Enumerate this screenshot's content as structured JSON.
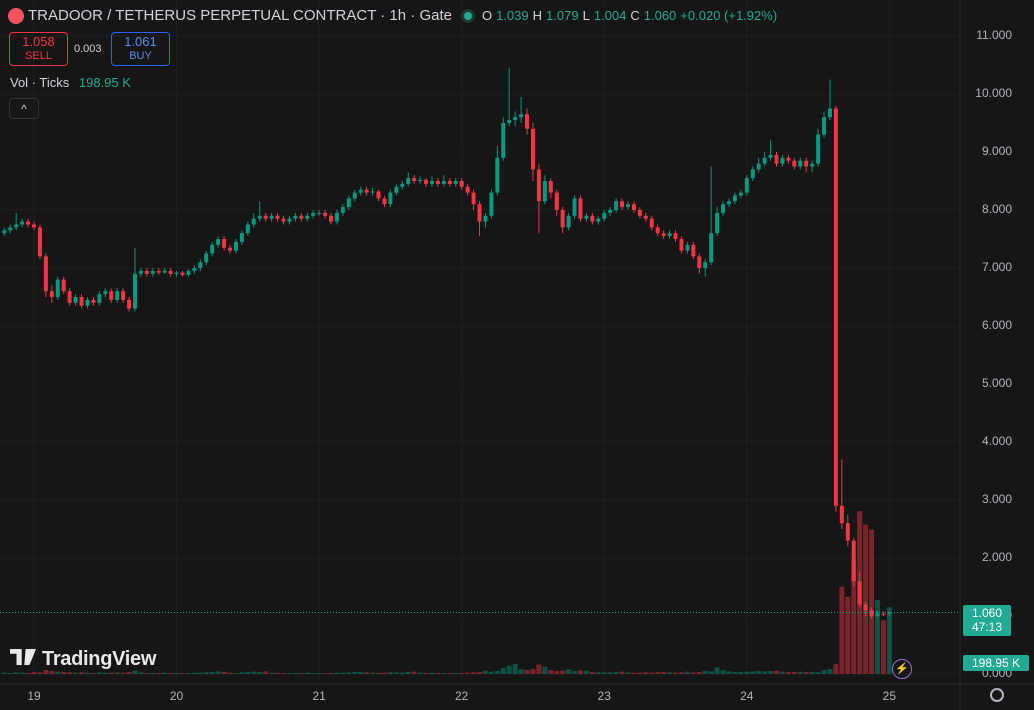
{
  "header": {
    "title": "TRADOOR / TETHERUS PERPETUAL CONTRACT · 1h · Gate",
    "o_label": "O",
    "o": "1.039",
    "h_label": "H",
    "h": "1.079",
    "l_label": "L",
    "l": "1.004",
    "c_label": "C",
    "c": "1.060",
    "change": "+0.020 (+1.92%)"
  },
  "trade": {
    "sell_price": "1.058",
    "sell": "SELL",
    "spread": "0.003",
    "buy_price": "1.061",
    "buy": "BUY"
  },
  "volume_legend": {
    "label": "Vol · Ticks",
    "value": "198.95 K"
  },
  "price_tag": {
    "price": "1.060",
    "countdown": "47:13"
  },
  "volume_tag": "198.95 K",
  "logo": "TradingView",
  "chart_data": {
    "type": "candlestick",
    "x_labels": [
      "19",
      "20",
      "21",
      "22",
      "23",
      "24",
      "25"
    ],
    "up_color": "#089981",
    "down_color": "#f23645",
    "grid": true,
    "ylim": [
      0,
      11
    ],
    "yticks": [
      {
        "value": 0,
        "label": "0.000"
      },
      {
        "value": 1,
        "label": "1.000"
      },
      {
        "value": 2,
        "label": "2.000"
      },
      {
        "value": 3,
        "label": "3.000"
      },
      {
        "value": 4,
        "label": "4.000"
      },
      {
        "value": 5,
        "label": "5.000"
      },
      {
        "value": 6,
        "label": "6.000"
      },
      {
        "value": 7,
        "label": "7.000"
      },
      {
        "value": 8,
        "label": "8.000"
      },
      {
        "value": 9,
        "label": "9.000"
      },
      {
        "value": 10,
        "label": "10.000"
      },
      {
        "value": 11,
        "label": "11.000"
      }
    ],
    "vlim": [
      0,
      1900
    ],
    "candles": [
      [
        7.6,
        7.7,
        7.55,
        7.65
      ],
      [
        7.65,
        7.75,
        7.6,
        7.7
      ],
      [
        7.7,
        7.95,
        7.65,
        7.75
      ],
      [
        7.75,
        7.85,
        7.7,
        7.8
      ],
      [
        7.8,
        7.85,
        7.7,
        7.75
      ],
      [
        7.75,
        7.8,
        7.65,
        7.7
      ],
      [
        7.7,
        7.75,
        7.15,
        7.2
      ],
      [
        7.2,
        7.25,
        6.5,
        6.6
      ],
      [
        6.6,
        6.7,
        6.4,
        6.5
      ],
      [
        6.5,
        6.85,
        6.45,
        6.8
      ],
      [
        6.8,
        6.85,
        6.55,
        6.6
      ],
      [
        6.6,
        6.65,
        6.35,
        6.4
      ],
      [
        6.4,
        6.55,
        6.35,
        6.5
      ],
      [
        6.5,
        6.55,
        6.3,
        6.35
      ],
      [
        6.35,
        6.5,
        6.3,
        6.45
      ],
      [
        6.45,
        6.5,
        6.35,
        6.4
      ],
      [
        6.4,
        6.6,
        6.35,
        6.55
      ],
      [
        6.55,
        6.65,
        6.5,
        6.6
      ],
      [
        6.6,
        6.65,
        6.4,
        6.45
      ],
      [
        6.45,
        6.65,
        6.4,
        6.6
      ],
      [
        6.6,
        6.65,
        6.4,
        6.45
      ],
      [
        6.45,
        6.5,
        6.25,
        6.3
      ],
      [
        6.3,
        7.35,
        6.25,
        6.9
      ],
      [
        6.9,
        7.0,
        6.85,
        6.95
      ],
      [
        6.95,
        7.0,
        6.85,
        6.9
      ],
      [
        6.9,
        7.0,
        6.85,
        6.95
      ],
      [
        6.95,
        7.0,
        6.88,
        6.92
      ],
      [
        6.92,
        7.0,
        6.9,
        6.95
      ],
      [
        6.95,
        7.0,
        6.85,
        6.9
      ],
      [
        6.9,
        6.95,
        6.85,
        6.92
      ],
      [
        6.92,
        6.95,
        6.85,
        6.88
      ],
      [
        6.88,
        6.98,
        6.85,
        6.95
      ],
      [
        6.95,
        7.05,
        6.9,
        7.0
      ],
      [
        7.0,
        7.15,
        6.95,
        7.1
      ],
      [
        7.1,
        7.3,
        7.05,
        7.25
      ],
      [
        7.25,
        7.45,
        7.2,
        7.4
      ],
      [
        7.4,
        7.55,
        7.35,
        7.5
      ],
      [
        7.5,
        7.55,
        7.3,
        7.35
      ],
      [
        7.35,
        7.4,
        7.25,
        7.3
      ],
      [
        7.3,
        7.5,
        7.25,
        7.45
      ],
      [
        7.45,
        7.65,
        7.4,
        7.6
      ],
      [
        7.6,
        7.8,
        7.55,
        7.75
      ],
      [
        7.75,
        7.95,
        7.7,
        7.85
      ],
      [
        7.85,
        8.15,
        7.8,
        7.9
      ],
      [
        7.9,
        7.95,
        7.8,
        7.85
      ],
      [
        7.85,
        7.95,
        7.8,
        7.9
      ],
      [
        7.9,
        7.95,
        7.8,
        7.85
      ],
      [
        7.85,
        7.9,
        7.75,
        7.8
      ],
      [
        7.8,
        7.9,
        7.75,
        7.85
      ],
      [
        7.85,
        7.95,
        7.8,
        7.9
      ],
      [
        7.9,
        7.95,
        7.8,
        7.85
      ],
      [
        7.85,
        7.95,
        7.8,
        7.9
      ],
      [
        7.9,
        8.0,
        7.85,
        7.95
      ],
      [
        7.95,
        8.0,
        7.9,
        7.95
      ],
      [
        7.95,
        8.0,
        7.85,
        7.9
      ],
      [
        7.9,
        7.95,
        7.75,
        7.8
      ],
      [
        7.8,
        8.0,
        7.75,
        7.95
      ],
      [
        7.95,
        8.1,
        7.9,
        8.05
      ],
      [
        8.05,
        8.25,
        8.0,
        8.2
      ],
      [
        8.2,
        8.35,
        8.15,
        8.3
      ],
      [
        8.3,
        8.4,
        8.25,
        8.35
      ],
      [
        8.35,
        8.4,
        8.25,
        8.3
      ],
      [
        8.3,
        8.38,
        8.25,
        8.32
      ],
      [
        8.32,
        8.35,
        8.15,
        8.2
      ],
      [
        8.2,
        8.25,
        8.05,
        8.1
      ],
      [
        8.1,
        8.35,
        8.05,
        8.3
      ],
      [
        8.3,
        8.45,
        8.25,
        8.4
      ],
      [
        8.4,
        8.5,
        8.35,
        8.45
      ],
      [
        8.45,
        8.65,
        8.4,
        8.55
      ],
      [
        8.55,
        8.6,
        8.45,
        8.5
      ],
      [
        8.5,
        8.58,
        8.45,
        8.52
      ],
      [
        8.52,
        8.55,
        8.4,
        8.45
      ],
      [
        8.45,
        8.58,
        8.4,
        8.5
      ],
      [
        8.5,
        8.55,
        8.4,
        8.45
      ],
      [
        8.45,
        8.6,
        8.4,
        8.5
      ],
      [
        8.5,
        8.55,
        8.4,
        8.45
      ],
      [
        8.45,
        8.55,
        8.4,
        8.5
      ],
      [
        8.5,
        8.55,
        8.35,
        8.4
      ],
      [
        8.4,
        8.45,
        8.25,
        8.3
      ],
      [
        8.3,
        8.35,
        8.0,
        8.1
      ],
      [
        8.1,
        8.15,
        7.55,
        7.8
      ],
      [
        7.8,
        7.95,
        7.7,
        7.9
      ],
      [
        7.9,
        8.35,
        7.85,
        8.3
      ],
      [
        8.3,
        9.1,
        8.25,
        8.9
      ],
      [
        8.9,
        9.6,
        8.85,
        9.5
      ],
      [
        9.5,
        10.45,
        9.45,
        9.55
      ],
      [
        9.55,
        9.7,
        9.45,
        9.6
      ],
      [
        9.6,
        9.95,
        9.5,
        9.65
      ],
      [
        9.65,
        9.75,
        9.3,
        9.4
      ],
      [
        9.4,
        9.5,
        8.5,
        8.7
      ],
      [
        8.7,
        8.8,
        7.6,
        8.15
      ],
      [
        8.15,
        8.6,
        8.1,
        8.5
      ],
      [
        8.5,
        8.55,
        8.2,
        8.3
      ],
      [
        8.3,
        8.35,
        7.9,
        8.0
      ],
      [
        8.0,
        8.05,
        7.6,
        7.7
      ],
      [
        7.7,
        7.95,
        7.65,
        7.9
      ],
      [
        7.9,
        8.25,
        7.85,
        8.2
      ],
      [
        8.2,
        8.25,
        7.8,
        7.85
      ],
      [
        7.85,
        7.95,
        7.8,
        7.9
      ],
      [
        7.9,
        7.95,
        7.75,
        7.8
      ],
      [
        7.8,
        7.9,
        7.75,
        7.85
      ],
      [
        7.85,
        8.0,
        7.8,
        7.95
      ],
      [
        7.95,
        8.05,
        7.9,
        8.0
      ],
      [
        8.0,
        8.2,
        7.95,
        8.15
      ],
      [
        8.15,
        8.2,
        8.0,
        8.05
      ],
      [
        8.05,
        8.15,
        8.0,
        8.1
      ],
      [
        8.1,
        8.15,
        7.95,
        8.0
      ],
      [
        8.0,
        8.05,
        7.85,
        7.9
      ],
      [
        7.9,
        7.95,
        7.8,
        7.85
      ],
      [
        7.85,
        7.9,
        7.65,
        7.7
      ],
      [
        7.7,
        7.75,
        7.55,
        7.6
      ],
      [
        7.6,
        7.65,
        7.5,
        7.55
      ],
      [
        7.55,
        7.65,
        7.5,
        7.6
      ],
      [
        7.6,
        7.65,
        7.45,
        7.5
      ],
      [
        7.5,
        7.55,
        7.25,
        7.3
      ],
      [
        7.3,
        7.45,
        7.25,
        7.4
      ],
      [
        7.4,
        7.45,
        7.15,
        7.2
      ],
      [
        7.2,
        7.25,
        6.9,
        7.0
      ],
      [
        7.0,
        7.15,
        6.85,
        7.1
      ],
      [
        7.1,
        8.75,
        7.05,
        7.6
      ],
      [
        7.6,
        8.05,
        7.55,
        7.95
      ],
      [
        7.95,
        8.15,
        7.9,
        8.1
      ],
      [
        8.1,
        8.2,
        8.05,
        8.15
      ],
      [
        8.15,
        8.3,
        8.1,
        8.25
      ],
      [
        8.25,
        8.35,
        8.2,
        8.3
      ],
      [
        8.3,
        8.6,
        8.25,
        8.55
      ],
      [
        8.55,
        8.75,
        8.5,
        8.7
      ],
      [
        8.7,
        8.9,
        8.65,
        8.8
      ],
      [
        8.8,
        9.0,
        8.75,
        8.9
      ],
      [
        8.9,
        9.2,
        8.85,
        8.95
      ],
      [
        8.95,
        9.0,
        8.75,
        8.8
      ],
      [
        8.8,
        8.95,
        8.75,
        8.9
      ],
      [
        8.9,
        8.95,
        8.8,
        8.85
      ],
      [
        8.85,
        8.9,
        8.7,
        8.75
      ],
      [
        8.75,
        8.9,
        8.7,
        8.85
      ],
      [
        8.85,
        8.9,
        8.65,
        8.75
      ],
      [
        8.75,
        8.85,
        8.65,
        8.8
      ],
      [
        8.8,
        9.4,
        8.75,
        9.3
      ],
      [
        9.3,
        9.7,
        9.25,
        9.6
      ],
      [
        9.6,
        10.25,
        9.55,
        9.75
      ],
      [
        9.75,
        9.8,
        2.8,
        2.9
      ],
      [
        2.9,
        3.7,
        2.5,
        2.6
      ],
      [
        2.6,
        2.75,
        2.2,
        2.3
      ],
      [
        2.3,
        2.35,
        1.5,
        1.6
      ],
      [
        1.6,
        1.75,
        1.15,
        1.2
      ],
      [
        1.2,
        1.25,
        1.0,
        1.1
      ],
      [
        1.1,
        1.15,
        0.95,
        1.0
      ],
      [
        1.0,
        1.1,
        0.98,
        1.04
      ],
      [
        1.04,
        1.08,
        1.0,
        1.039
      ],
      [
        1.039,
        1.079,
        1.004,
        1.06
      ]
    ],
    "volume": [
      4,
      3,
      5,
      4,
      3,
      6,
      5,
      12,
      9,
      7,
      6,
      5,
      4,
      5,
      4,
      3,
      5,
      4,
      4,
      5,
      4,
      6,
      10,
      5,
      3,
      3,
      3,
      4,
      3,
      3,
      3,
      3,
      4,
      4,
      5,
      6,
      8,
      6,
      4,
      3,
      5,
      6,
      7,
      6,
      8,
      4,
      3,
      3,
      3,
      3,
      3,
      4,
      3,
      3,
      3,
      3,
      4,
      4,
      5,
      6,
      6,
      5,
      4,
      3,
      4,
      5,
      5,
      4,
      6,
      7,
      4,
      3,
      4,
      3,
      3,
      3,
      3,
      3,
      4,
      5,
      6,
      10,
      7,
      9,
      18,
      25,
      30,
      14,
      12,
      15,
      28,
      22,
      12,
      9,
      10,
      14,
      9,
      11,
      10,
      6,
      5,
      5,
      5,
      6,
      7,
      5,
      4,
      4,
      5,
      4,
      6,
      6,
      5,
      4,
      5,
      7,
      5,
      6,
      9,
      8,
      20,
      12,
      8,
      6,
      6,
      7,
      8,
      9,
      8,
      9,
      10,
      7,
      6,
      6,
      7,
      6,
      6,
      5,
      12,
      15,
      30,
      260,
      230,
      340,
      485,
      445,
      430,
      220,
      160,
      198.95
    ]
  }
}
